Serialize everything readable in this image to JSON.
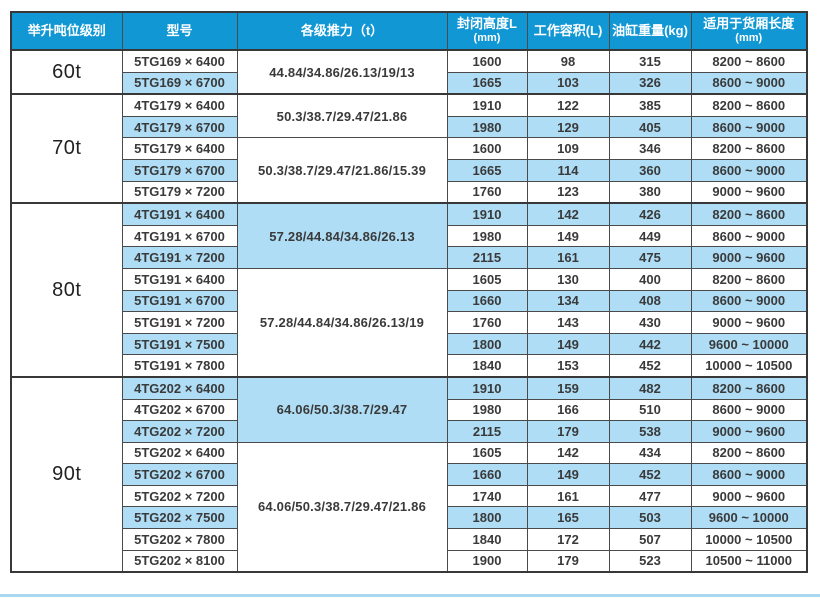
{
  "colors": {
    "header_bg": "#1097D4",
    "header_text": "#FFFFFF",
    "row_shaded": "#AEDDF5",
    "border": "#4A4A4A",
    "outer_border": "#383838",
    "text": "#3A3A3A",
    "bottom_rule": "#A9D9F1"
  },
  "table": {
    "headers": [
      {
        "label": "举升吨位级别",
        "sub": ""
      },
      {
        "label": "型号",
        "sub": ""
      },
      {
        "label": "各级推力（t）",
        "sub": ""
      },
      {
        "label": "封闭高度L",
        "sub": "(mm)"
      },
      {
        "label": "工作容积(L)",
        "sub": ""
      },
      {
        "label": "油缸重量(kg)",
        "sub": ""
      },
      {
        "label": "适用于货厢长度",
        "sub": "(mm)"
      }
    ],
    "groups": [
      {
        "tonnage": "60t",
        "thrust_groups": [
          {
            "thrust": "44.84/34.86/26.13/19/13",
            "shaded": false,
            "rows": [
              {
                "model": "5TG169 × 6400",
                "shaded": false,
                "closed_height": "1600",
                "working_volume": "98",
                "cylinder_weight": "315",
                "box_length": "8200 ~ 8600"
              },
              {
                "model": "5TG169 × 6700",
                "shaded": true,
                "closed_height": "1665",
                "working_volume": "103",
                "cylinder_weight": "326",
                "box_length": "8600 ~ 9000"
              }
            ]
          }
        ]
      },
      {
        "tonnage": "70t",
        "thrust_groups": [
          {
            "thrust": "50.3/38.7/29.47/21.86",
            "shaded": false,
            "rows": [
              {
                "model": "4TG179 × 6400",
                "shaded": false,
                "closed_height": "1910",
                "working_volume": "122",
                "cylinder_weight": "385",
                "box_length": "8200 ~ 8600"
              },
              {
                "model": "4TG179 × 6700",
                "shaded": true,
                "closed_height": "1980",
                "working_volume": "129",
                "cylinder_weight": "405",
                "box_length": "8600 ~ 9000"
              }
            ]
          },
          {
            "thrust": "50.3/38.7/29.47/21.86/15.39",
            "shaded": false,
            "rows": [
              {
                "model": "5TG179 × 6400",
                "shaded": false,
                "closed_height": "1600",
                "working_volume": "109",
                "cylinder_weight": "346",
                "box_length": "8200 ~ 8600"
              },
              {
                "model": "5TG179 × 6700",
                "shaded": true,
                "closed_height": "1665",
                "working_volume": "114",
                "cylinder_weight": "360",
                "box_length": "8600 ~ 9000"
              },
              {
                "model": "5TG179 × 7200",
                "shaded": false,
                "closed_height": "1760",
                "working_volume": "123",
                "cylinder_weight": "380",
                "box_length": "9000 ~ 9600"
              }
            ]
          }
        ]
      },
      {
        "tonnage": "80t",
        "thrust_groups": [
          {
            "thrust": "57.28/44.84/34.86/26.13",
            "shaded": true,
            "rows": [
              {
                "model": "4TG191 × 6400",
                "shaded": true,
                "closed_height": "1910",
                "working_volume": "142",
                "cylinder_weight": "426",
                "box_length": "8200 ~ 8600"
              },
              {
                "model": "4TG191 × 6700",
                "shaded": false,
                "closed_height": "1980",
                "working_volume": "149",
                "cylinder_weight": "449",
                "box_length": "8600 ~ 9000"
              },
              {
                "model": "4TG191 × 7200",
                "shaded": true,
                "closed_height": "2115",
                "working_volume": "161",
                "cylinder_weight": "475",
                "box_length": "9000 ~ 9600"
              }
            ]
          },
          {
            "thrust": "57.28/44.84/34.86/26.13/19",
            "shaded": false,
            "rows": [
              {
                "model": "5TG191 × 6400",
                "shaded": false,
                "closed_height": "1605",
                "working_volume": "130",
                "cylinder_weight": "400",
                "box_length": "8200 ~ 8600"
              },
              {
                "model": "5TG191 × 6700",
                "shaded": true,
                "closed_height": "1660",
                "working_volume": "134",
                "cylinder_weight": "408",
                "box_length": "8600 ~ 9000"
              },
              {
                "model": "5TG191 × 7200",
                "shaded": false,
                "closed_height": "1760",
                "working_volume": "143",
                "cylinder_weight": "430",
                "box_length": "9000 ~ 9600"
              },
              {
                "model": "5TG191 × 7500",
                "shaded": true,
                "closed_height": "1800",
                "working_volume": "149",
                "cylinder_weight": "442",
                "box_length": "9600 ~ 10000"
              },
              {
                "model": "5TG191 × 7800",
                "shaded": false,
                "closed_height": "1840",
                "working_volume": "153",
                "cylinder_weight": "452",
                "box_length": "10000 ~ 10500"
              }
            ]
          }
        ]
      },
      {
        "tonnage": "90t",
        "thrust_groups": [
          {
            "thrust": "64.06/50.3/38.7/29.47",
            "shaded": true,
            "rows": [
              {
                "model": "4TG202 × 6400",
                "shaded": true,
                "closed_height": "1910",
                "working_volume": "159",
                "cylinder_weight": "482",
                "box_length": "8200 ~ 8600"
              },
              {
                "model": "4TG202 × 6700",
                "shaded": false,
                "closed_height": "1980",
                "working_volume": "166",
                "cylinder_weight": "510",
                "box_length": "8600 ~ 9000"
              },
              {
                "model": "4TG202 × 7200",
                "shaded": true,
                "closed_height": "2115",
                "working_volume": "179",
                "cylinder_weight": "538",
                "box_length": "9000 ~ 9600"
              }
            ]
          },
          {
            "thrust": "64.06/50.3/38.7/29.47/21.86",
            "shaded": false,
            "rows": [
              {
                "model": "5TG202 × 6400",
                "shaded": false,
                "closed_height": "1605",
                "working_volume": "142",
                "cylinder_weight": "434",
                "box_length": "8200 ~ 8600"
              },
              {
                "model": "5TG202 × 6700",
                "shaded": true,
                "closed_height": "1660",
                "working_volume": "149",
                "cylinder_weight": "452",
                "box_length": "8600 ~ 9000"
              },
              {
                "model": "5TG202 × 7200",
                "shaded": false,
                "closed_height": "1740",
                "working_volume": "161",
                "cylinder_weight": "477",
                "box_length": "9000 ~ 9600"
              },
              {
                "model": "5TG202 × 7500",
                "shaded": true,
                "closed_height": "1800",
                "working_volume": "165",
                "cylinder_weight": "503",
                "box_length": "9600 ~ 10000"
              },
              {
                "model": "5TG202 × 7800",
                "shaded": false,
                "closed_height": "1840",
                "working_volume": "172",
                "cylinder_weight": "507",
                "box_length": "10000 ~ 10500"
              },
              {
                "model": "5TG202 × 8100",
                "shaded": false,
                "closed_height": "1900",
                "working_volume": "179",
                "cylinder_weight": "523",
                "box_length": "10500 ~ 11000"
              }
            ]
          }
        ]
      }
    ]
  }
}
